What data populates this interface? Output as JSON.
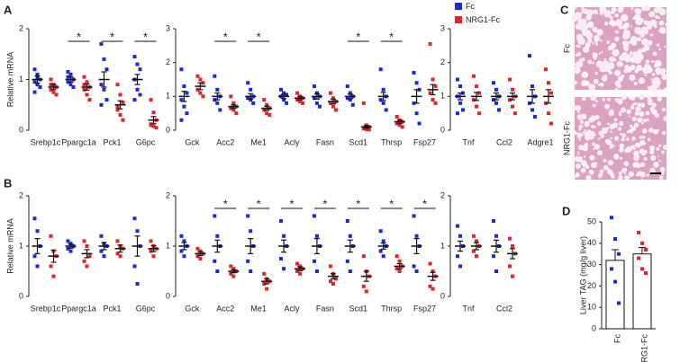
{
  "chart_data": [
    {
      "type": "dot",
      "panel": "A",
      "ylabel": "Relative mRNA",
      "categories": [
        "Srebp1c",
        "Ppargc1a",
        "Pck1",
        "G6pc"
      ],
      "sig": [
        null,
        "*",
        "*",
        "*"
      ],
      "ylim": [
        0,
        2
      ],
      "yticks": [
        0,
        1,
        2
      ],
      "series": [
        {
          "name": "Fc",
          "color": "#1b2ad6",
          "values": [
            1.0,
            1.0,
            1.0,
            1.0
          ],
          "errors": [
            0.07,
            0.05,
            0.15,
            0.1
          ],
          "points": [
            [
              1.2,
              1.1,
              1.0,
              0.95,
              0.9,
              0.85,
              0.75,
              1.05
            ],
            [
              1.15,
              1.1,
              1.0,
              0.95,
              0.9,
              0.85,
              1.05
            ],
            [
              1.7,
              1.4,
              1.2,
              0.9,
              0.8,
              0.6,
              0.5
            ],
            [
              1.45,
              1.3,
              1.2,
              1.0,
              0.8,
              0.7,
              0.6
            ]
          ]
        },
        {
          "name": "NRG1-Fc",
          "color": "#e0262c",
          "values": [
            0.85,
            0.85,
            0.5,
            0.2
          ],
          "errors": [
            0.05,
            0.06,
            0.08,
            0.07
          ],
          "points": [
            [
              1.0,
              0.9,
              0.85,
              0.8,
              0.75,
              0.7,
              0.9
            ],
            [
              1.05,
              0.95,
              0.85,
              0.8,
              0.7,
              0.6,
              0.9
            ],
            [
              0.9,
              0.7,
              0.55,
              0.45,
              0.3,
              0.2,
              0.4
            ],
            [
              0.6,
              0.35,
              0.2,
              0.1,
              0.08,
              0.05,
              0.12
            ]
          ]
        }
      ]
    },
    {
      "type": "dot",
      "categories": [
        "Gck",
        "Acc2",
        "Me1",
        "Acly",
        "Fasn",
        "Scd1",
        "Thrsp",
        "Fsp27"
      ],
      "sig": [
        null,
        "*",
        "*",
        null,
        null,
        "*",
        "*",
        null
      ],
      "ylim": [
        0,
        3
      ],
      "yticks": [
        0,
        1,
        2,
        3
      ],
      "series": [
        {
          "name": "Fc",
          "color": "#1b2ad6",
          "values": [
            1.0,
            1.0,
            1.0,
            1.0,
            1.0,
            1.0,
            1.0,
            1.0
          ],
          "errors": [
            0.15,
            0.1,
            0.08,
            0.06,
            0.08,
            0.07,
            0.12,
            0.2
          ],
          "points": [
            [
              1.8,
              1.3,
              1.1,
              0.9,
              0.7,
              0.5,
              0.3
            ],
            [
              1.6,
              1.2,
              1.0,
              0.9,
              0.8,
              0.6
            ],
            [
              1.4,
              1.2,
              1.0,
              0.95,
              0.9,
              0.8
            ],
            [
              1.2,
              1.1,
              1.05,
              1.0,
              0.9,
              0.8
            ],
            [
              1.3,
              1.1,
              1.0,
              0.95,
              0.8,
              0.7
            ],
            [
              1.3,
              1.1,
              1.0,
              0.95,
              0.9,
              0.75
            ],
            [
              1.8,
              1.2,
              1.0,
              0.9,
              0.8,
              0.6
            ],
            [
              1.7,
              1.4,
              1.2,
              0.8,
              0.5,
              0.2
            ]
          ]
        },
        {
          "name": "NRG1-Fc",
          "color": "#e0262c",
          "values": [
            1.3,
            0.7,
            0.65,
            0.95,
            0.85,
            0.1,
            0.25,
            1.2
          ],
          "errors": [
            0.1,
            0.05,
            0.06,
            0.05,
            0.07,
            0.04,
            0.05,
            0.15
          ],
          "points": [
            [
              1.6,
              1.5,
              1.4,
              1.2,
              1.1,
              1.0
            ],
            [
              1.0,
              0.8,
              0.7,
              0.65,
              0.6,
              0.5
            ],
            [
              0.9,
              0.75,
              0.65,
              0.6,
              0.5,
              0.45
            ],
            [
              1.1,
              1.0,
              0.95,
              0.9,
              0.85,
              0.8
            ],
            [
              1.1,
              0.95,
              0.85,
              0.8,
              0.7,
              0.6
            ],
            [
              0.8,
              0.15,
              0.1,
              0.05,
              0.03,
              0.02
            ],
            [
              0.4,
              0.3,
              0.25,
              0.2,
              0.15,
              0.1
            ],
            [
              2.55,
              1.5,
              1.3,
              1.1,
              0.9,
              0.8
            ]
          ]
        }
      ]
    },
    {
      "type": "dot",
      "categories": [
        "Tnf",
        "Ccl2",
        "Adgre1"
      ],
      "sig": [
        null,
        null,
        null
      ],
      "ylim": [
        0,
        3
      ],
      "yticks": [
        0,
        1,
        2,
        3
      ],
      "series": [
        {
          "name": "Fc",
          "color": "#1b2ad6",
          "values": [
            1.0,
            1.0,
            1.0
          ],
          "errors": [
            0.1,
            0.1,
            0.2
          ],
          "points": [
            [
              1.5,
              1.3,
              1.1,
              1.0,
              0.8,
              0.6,
              0.5
            ],
            [
              1.4,
              1.2,
              1.0,
              0.9,
              0.8,
              0.6
            ],
            [
              2.2,
              1.3,
              1.0,
              0.8,
              0.6,
              0.4
            ]
          ]
        },
        {
          "name": "NRG1-Fc",
          "color": "#e0262c",
          "values": [
            1.0,
            1.0,
            1.0
          ],
          "errors": [
            0.12,
            0.1,
            0.2
          ],
          "points": [
            [
              1.6,
              1.3,
              1.1,
              0.9,
              0.7,
              0.5
            ],
            [
              1.5,
              1.2,
              1.0,
              0.9,
              0.7,
              0.5
            ],
            [
              1.8,
              1.4,
              1.1,
              0.8,
              0.5,
              0.2
            ]
          ]
        }
      ]
    },
    {
      "type": "dot",
      "panel": "B",
      "ylabel": "Relative mRNA",
      "categories": [
        "Srebp1c",
        "Ppargc1a",
        "Pck1",
        "G6pc"
      ],
      "sig": [
        null,
        null,
        null,
        null
      ],
      "ylim": [
        0,
        2
      ],
      "yticks": [
        0,
        1,
        2
      ],
      "series": [
        {
          "name": "Fc",
          "color": "#1b2ad6",
          "values": [
            1.0,
            1.0,
            1.0,
            1.0
          ],
          "errors": [
            0.15,
            0.04,
            0.07,
            0.2
          ],
          "points": [
            [
              1.55,
              1.3,
              1.0,
              0.8,
              0.6
            ],
            [
              1.1,
              1.05,
              1.0,
              0.95,
              0.9
            ],
            [
              1.2,
              1.05,
              1.0,
              0.9,
              0.8
            ],
            [
              1.55,
              1.3,
              1.0,
              0.6,
              0.25
            ]
          ]
        },
        {
          "name": "NRG1-Fc",
          "color": "#e0262c",
          "values": [
            0.8,
            0.85,
            0.95,
            0.95
          ],
          "errors": [
            0.12,
            0.08,
            0.07,
            0.06
          ],
          "points": [
            [
              1.2,
              0.9,
              0.8,
              0.6,
              0.4
            ],
            [
              1.1,
              1.0,
              0.8,
              0.7,
              0.6
            ],
            [
              1.1,
              1.0,
              0.95,
              0.85,
              0.8
            ],
            [
              1.1,
              1.0,
              0.95,
              0.9,
              0.8
            ]
          ]
        }
      ]
    },
    {
      "type": "dot",
      "categories": [
        "Gck",
        "Acc2",
        "Me1",
        "Acly",
        "Fasn",
        "Scd1",
        "Thrsp",
        "Fsp27"
      ],
      "sig": [
        null,
        "*",
        "*",
        "*",
        "*",
        "*",
        "*",
        "*"
      ],
      "ylim": [
        0,
        2
      ],
      "yticks": [
        0,
        1,
        2
      ],
      "series": [
        {
          "name": "Fc",
          "color": "#1b2ad6",
          "values": [
            1.0,
            1.0,
            1.0,
            1.0,
            1.0,
            1.0,
            1.0,
            1.0
          ],
          "errors": [
            0.07,
            0.12,
            0.15,
            0.12,
            0.15,
            0.12,
            0.06,
            0.15
          ],
          "points": [
            [
              1.2,
              1.1,
              1.0,
              0.9,
              0.8
            ],
            [
              1.6,
              1.2,
              1.0,
              0.7,
              0.5
            ],
            [
              1.6,
              1.3,
              1.0,
              0.7,
              0.5
            ],
            [
              1.5,
              1.2,
              1.0,
              0.75,
              0.55
            ],
            [
              1.6,
              1.2,
              1.0,
              0.7,
              0.5
            ],
            [
              1.5,
              1.2,
              1.0,
              0.7,
              0.5
            ],
            [
              1.3,
              1.1,
              1.0,
              0.9,
              0.8
            ],
            [
              1.6,
              1.2,
              1.0,
              0.6,
              0.5
            ]
          ]
        },
        {
          "name": "NRG1-Fc",
          "color": "#e0262c",
          "values": [
            0.85,
            0.5,
            0.3,
            0.55,
            0.4,
            0.4,
            0.6,
            0.4
          ],
          "errors": [
            0.04,
            0.03,
            0.05,
            0.04,
            0.05,
            0.1,
            0.05,
            0.08
          ],
          "points": [
            [
              0.95,
              0.9,
              0.85,
              0.8,
              0.75
            ],
            [
              0.6,
              0.55,
              0.5,
              0.45,
              0.4
            ],
            [
              0.45,
              0.35,
              0.3,
              0.25,
              0.15
            ],
            [
              0.65,
              0.6,
              0.55,
              0.5,
              0.45
            ],
            [
              0.6,
              0.45,
              0.35,
              0.3,
              0.25
            ],
            [
              0.8,
              0.5,
              0.4,
              0.2,
              0.1
            ],
            [
              0.8,
              0.7,
              0.6,
              0.55,
              0.5
            ],
            [
              0.65,
              0.5,
              0.4,
              0.2,
              0.15
            ]
          ]
        }
      ]
    },
    {
      "type": "dot",
      "categories": [
        "Tnf",
        "Ccl2"
      ],
      "sig": [
        null,
        null
      ],
      "ylim": [
        0,
        2
      ],
      "yticks": [
        0,
        1,
        2
      ],
      "series": [
        {
          "name": "Fc",
          "color": "#1b2ad6",
          "values": [
            1.0,
            1.0
          ],
          "errors": [
            0.1,
            0.12
          ],
          "points": [
            [
              1.4,
              1.2,
              1.0,
              0.8,
              0.6
            ],
            [
              1.5,
              1.2,
              1.0,
              0.8,
              0.5
            ]
          ]
        },
        {
          "name": "NRG1-Fc",
          "color": "#e0262c",
          "values": [
            1.0,
            0.85
          ],
          "errors": [
            0.07,
            0.1
          ],
          "points": [
            [
              1.2,
              1.1,
              1.0,
              0.9,
              0.8
            ],
            [
              1.15,
              1.0,
              0.85,
              0.6,
              0.4
            ]
          ]
        }
      ]
    },
    {
      "type": "image",
      "panel": "C",
      "labels": [
        "Fc",
        "NRG1-Fc"
      ]
    },
    {
      "type": "bar",
      "panel": "D",
      "ylabel": "Liver TAG (mg/g liver)",
      "categories": [
        "Fc",
        "NRG1-Fc"
      ],
      "values": [
        32,
        35
      ],
      "errors": [
        5,
        3
      ],
      "points": [
        [
          52,
          42,
          35,
          28,
          22,
          12
        ],
        [
          45,
          40,
          37,
          33,
          28,
          26
        ]
      ],
      "colors": [
        "#1b2ad6",
        "#e0262c"
      ],
      "ylim": [
        0,
        50
      ],
      "yticks": [
        0,
        10,
        20,
        30,
        40,
        50
      ]
    }
  ]
}
